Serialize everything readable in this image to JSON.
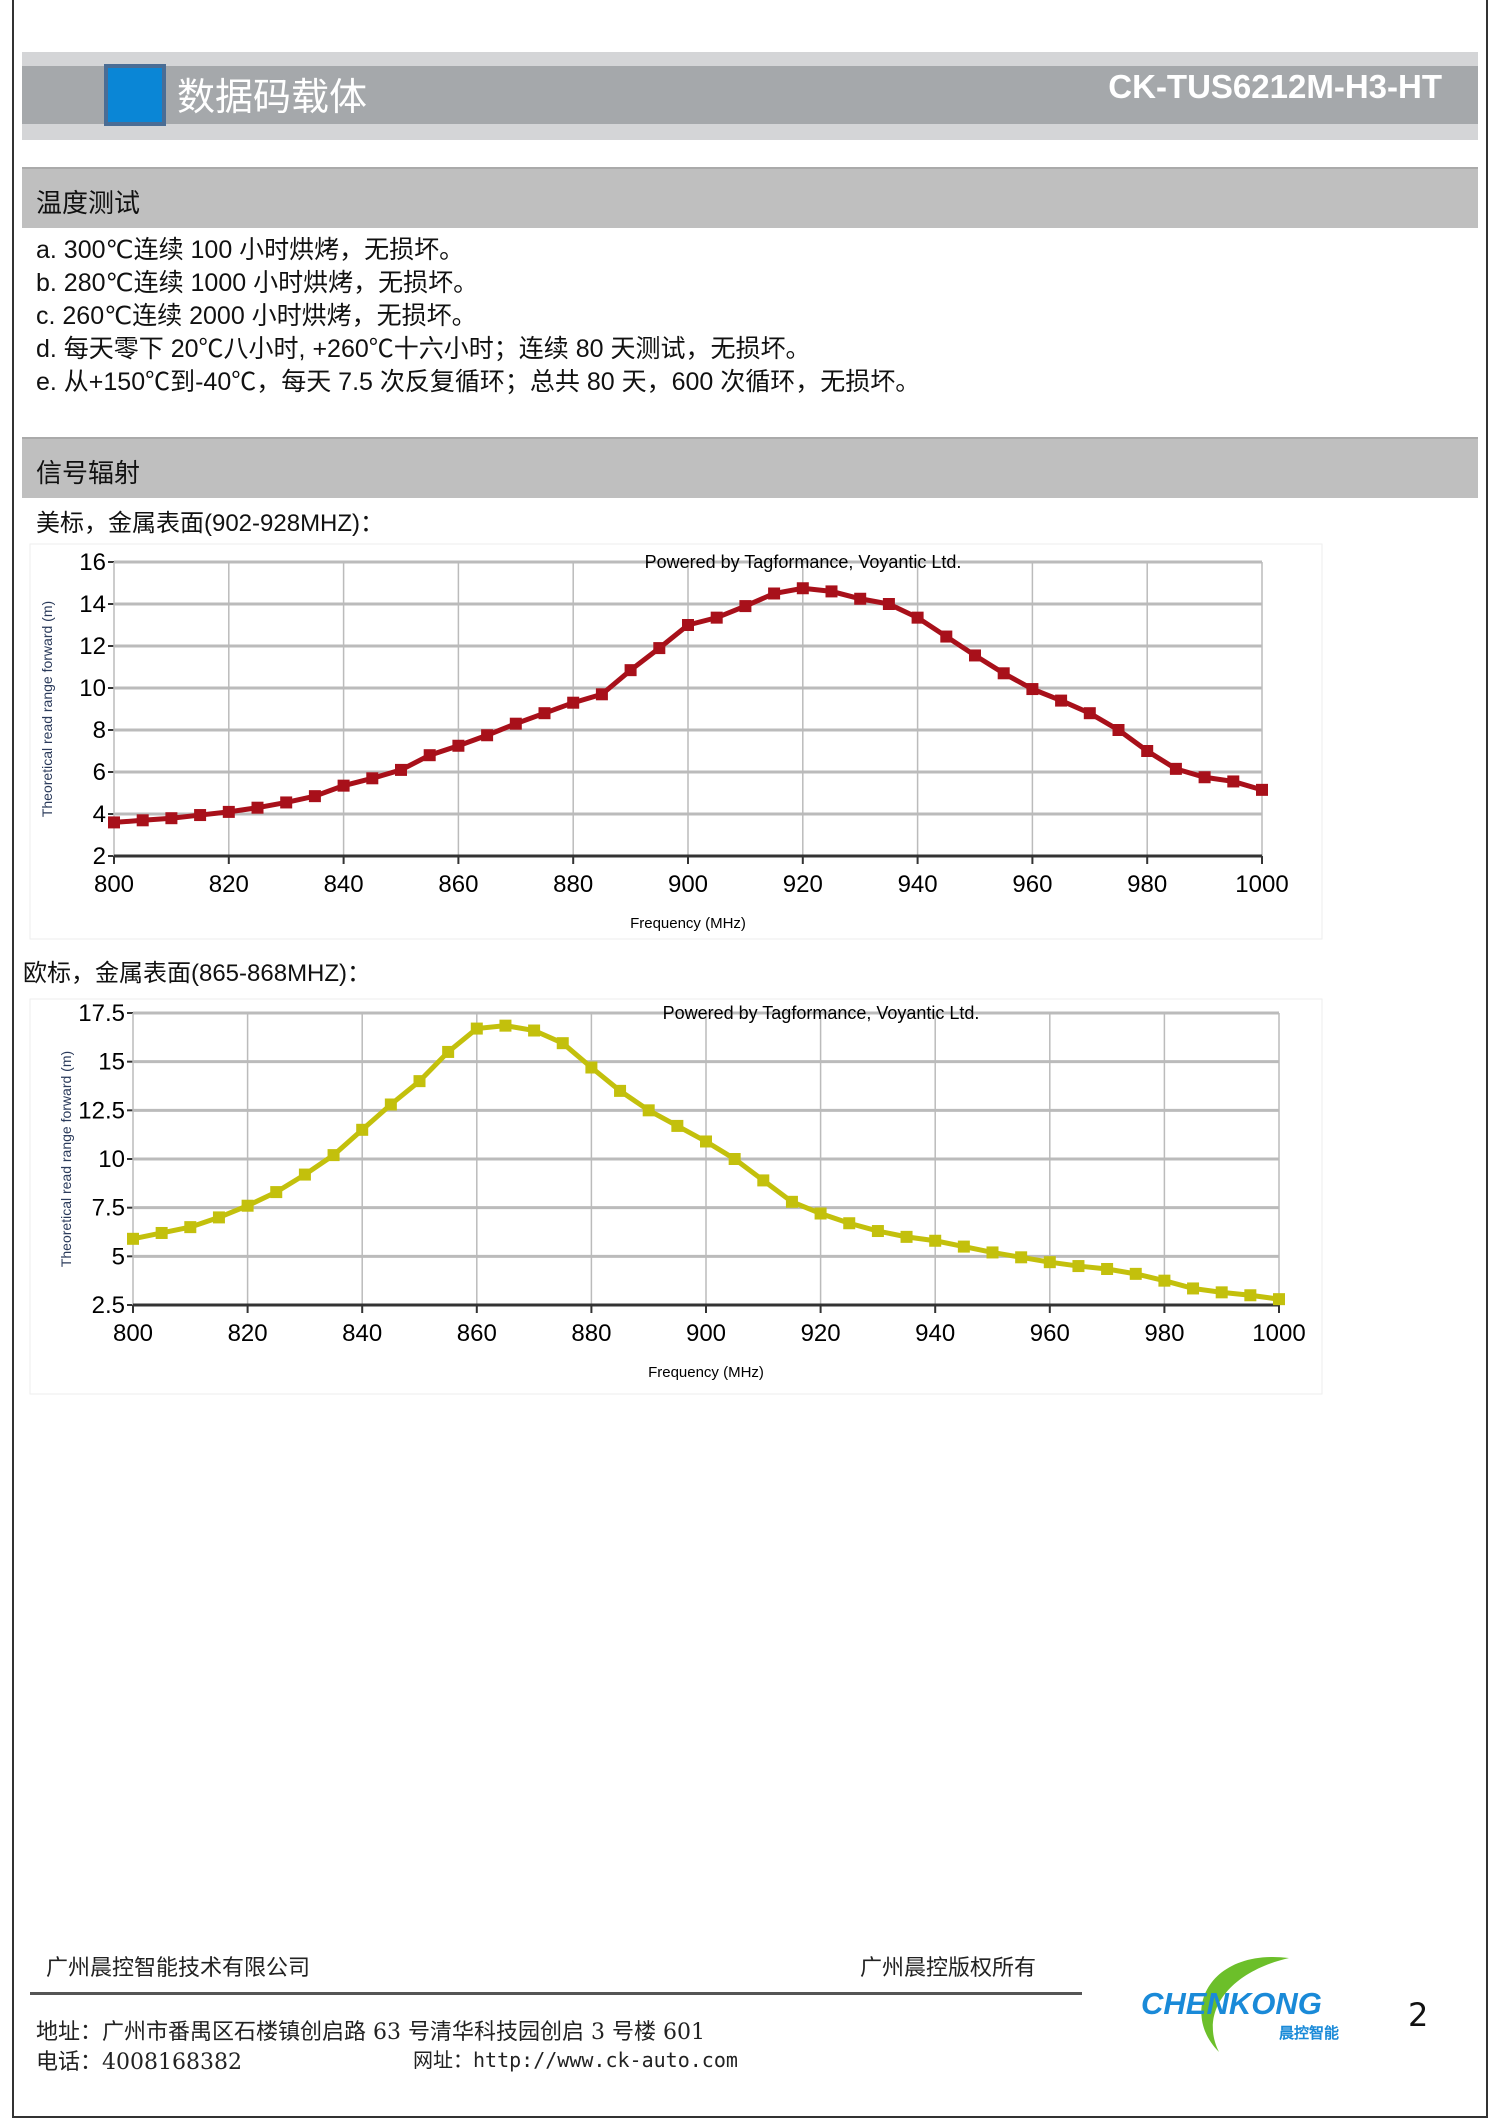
{
  "header": {
    "title": "数据码载体",
    "product_code": "CK-TUS6212M-H3-HT",
    "accent": "#0a86d6"
  },
  "temperature": {
    "title": "温度测试",
    "items": [
      "a. 300℃连续 100 小时烘烤，无损坏。",
      "b. 280℃连续 1000 小时烘烤，无损坏。",
      "c. 260℃连续 2000 小时烘烤，无损坏。",
      "d.  每天零下 20℃八小时, +260℃十六小时；连续 80 天测试，无损坏。",
      "e.  从+150℃到-40℃，每天 7.5 次反复循环；总共 80 天，600 次循环，无损坏。"
    ]
  },
  "signal": {
    "title": "信号辐射",
    "us_label": "美标，金属表面(902-928MHZ)：",
    "eu_label": "欧标，金属表面(865-868MHZ)："
  },
  "chart_data": [
    {
      "type": "line",
      "title": "Powered by Tagformance, Voyantic Ltd.",
      "xlabel": "Frequency (MHz)",
      "ylabel": "Theoretical read range forward (m)",
      "xlim": [
        800,
        1000
      ],
      "ylim": [
        2,
        16
      ],
      "xticks": [
        800,
        820,
        840,
        860,
        880,
        900,
        920,
        940,
        960,
        980,
        1000
      ],
      "yticks": [
        2,
        4,
        6,
        8,
        10,
        12,
        14,
        16
      ],
      "ytick_labels": [
        "2",
        "4",
        "6",
        "8",
        "10",
        "12",
        "14",
        "16"
      ],
      "grid": true,
      "color": "#a8101a",
      "x": [
        800,
        805,
        810,
        815,
        820,
        825,
        830,
        835,
        840,
        845,
        850,
        855,
        860,
        865,
        870,
        875,
        880,
        885,
        890,
        895,
        900,
        905,
        910,
        915,
        920,
        925,
        930,
        935,
        940,
        945,
        950,
        955,
        960,
        965,
        970,
        975,
        980,
        985,
        990,
        995,
        1000
      ],
      "y": [
        3.6,
        3.7,
        3.8,
        3.95,
        4.1,
        4.3,
        4.55,
        4.85,
        5.35,
        5.7,
        6.1,
        6.8,
        7.25,
        7.75,
        8.3,
        8.8,
        9.3,
        9.7,
        10.85,
        11.9,
        13.0,
        13.35,
        13.9,
        14.5,
        14.75,
        14.6,
        14.25,
        14.0,
        13.35,
        12.45,
        11.55,
        10.7,
        9.95,
        9.4,
        8.8,
        8.0,
        7.0,
        6.15,
        5.75,
        5.55,
        5.15
      ]
    },
    {
      "type": "line",
      "title": "Powered by Tagformance, Voyantic Ltd.",
      "xlabel": "Frequency (MHz)",
      "ylabel": "Theoretical read range forward (m)",
      "xlim": [
        800,
        1000
      ],
      "ylim": [
        2.5,
        17.5
      ],
      "xticks": [
        800,
        820,
        840,
        860,
        880,
        900,
        920,
        940,
        960,
        980,
        1000
      ],
      "yticks": [
        2.5,
        5,
        7.5,
        10,
        12.5,
        15,
        17.5
      ],
      "ytick_labels": [
        "2.5",
        "5",
        "7.5",
        "10",
        "12.5",
        "15",
        "17.5"
      ],
      "grid": true,
      "color": "#c3c00c",
      "x": [
        800,
        805,
        810,
        815,
        820,
        825,
        830,
        835,
        840,
        845,
        850,
        855,
        860,
        865,
        870,
        875,
        880,
        885,
        890,
        895,
        900,
        905,
        910,
        915,
        920,
        925,
        930,
        935,
        940,
        945,
        950,
        955,
        960,
        965,
        970,
        975,
        980,
        985,
        990,
        995,
        1000
      ],
      "y": [
        5.9,
        6.2,
        6.5,
        7.0,
        7.6,
        8.3,
        9.2,
        10.2,
        11.5,
        12.8,
        14.0,
        15.5,
        16.7,
        16.85,
        16.6,
        15.95,
        14.7,
        13.5,
        12.5,
        11.7,
        10.9,
        10.0,
        8.9,
        7.8,
        7.2,
        6.7,
        6.3,
        6.0,
        5.8,
        5.5,
        5.2,
        4.95,
        4.7,
        4.5,
        4.35,
        4.1,
        3.75,
        3.35,
        3.15,
        3.0,
        2.8
      ]
    }
  ],
  "footer": {
    "company": "广州晨控智能技术有限公司",
    "copyright": "广州晨控版权所有",
    "address": "地址：广州市番禺区石楼镇创启路 63 号清华科技园创启 3 号楼 601",
    "phone": "电话：4008168382",
    "website": "网址：http://www.ck-auto.com",
    "logo_text": "CHENKONG",
    "logo_sub": "晨控智能",
    "page": "2"
  }
}
